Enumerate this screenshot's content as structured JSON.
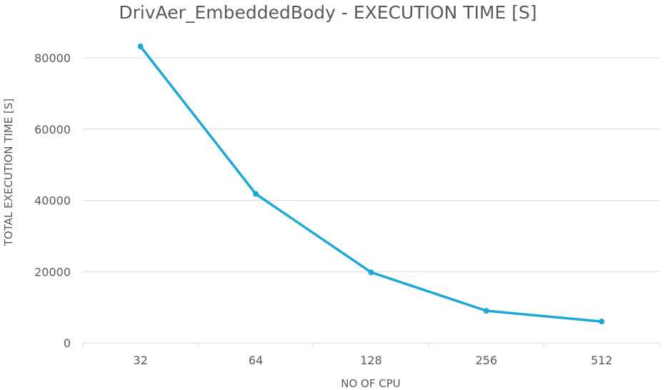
{
  "chart_data": {
    "type": "line",
    "title": "DrivAer_EmbeddedBody - EXECUTION TIME [S]",
    "xlabel": "NO OF CPU",
    "ylabel": "TOTAL EXECUTION TIME [S]",
    "categories": [
      "32",
      "64",
      "128",
      "256",
      "512"
    ],
    "series": [
      {
        "values": [
          83200,
          41800,
          19800,
          9000,
          6000
        ],
        "color": "#1FA7D8"
      }
    ],
    "ylim": [
      0,
      80000
    ],
    "y_ticks": [
      "0",
      "20000",
      "40000",
      "60000",
      "80000"
    ],
    "grid": "horizontal",
    "legend": "none",
    "colors": {
      "gridline": "#D9D9D9",
      "text": "#595959"
    }
  }
}
